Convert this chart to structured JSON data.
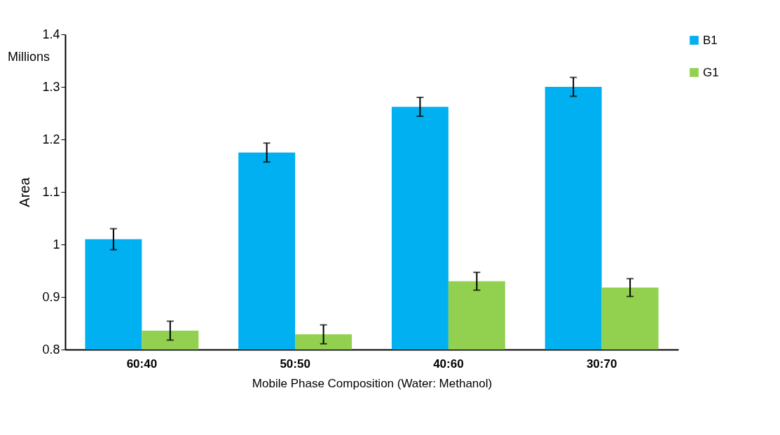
{
  "chart_data": {
    "type": "bar",
    "xlabel": "Mobile Phase Composition (Water: Methanol)",
    "ylabel": "Area",
    "annotations": [
      "Millions"
    ],
    "categories": [
      "60:40",
      "50:50",
      "40:60",
      "30:70"
    ],
    "series": [
      {
        "name": "B1",
        "color": "#00b0f0",
        "values": [
          1.01,
          1.175,
          1.262,
          1.3
        ],
        "errors": [
          0.02,
          0.018,
          0.018,
          0.018
        ]
      },
      {
        "name": "G1",
        "color": "#92d050",
        "values": [
          0.836,
          0.829,
          0.93,
          0.918
        ],
        "errors": [
          0.018,
          0.018,
          0.017,
          0.017
        ]
      }
    ],
    "ylim": [
      0.8,
      1.4
    ],
    "yticks": [
      0.8,
      0.9,
      1,
      1.1,
      1.2,
      1.3,
      1.4
    ],
    "grid": false,
    "legend": "right"
  }
}
